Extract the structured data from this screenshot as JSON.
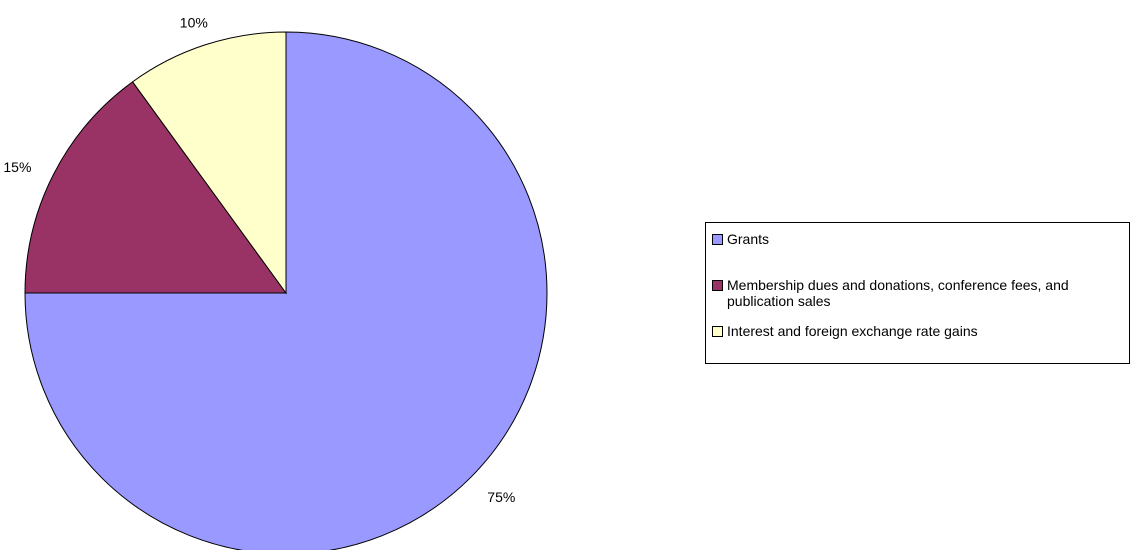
{
  "chart_data": {
    "type": "pie",
    "slices": [
      {
        "label": "Grants",
        "value": 75,
        "data_label": "75%",
        "color": "#9999FF"
      },
      {
        "label": "Membership dues and donations, conference fees, and publication sales",
        "value": 15,
        "data_label": "15%",
        "color": "#993366"
      },
      {
        "label": "Interest and foreign exchange rate gains",
        "value": 10,
        "data_label": "10%",
        "color": "#FFFFCC"
      }
    ],
    "start_angle_deg": 0,
    "direction": "clockwise",
    "legend_position": "right"
  }
}
